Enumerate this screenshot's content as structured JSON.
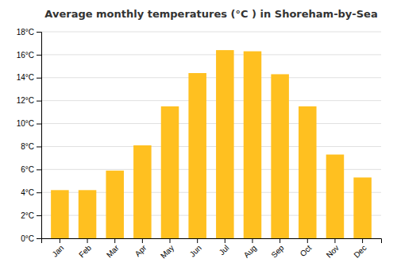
{
  "chart_data": {
    "type": "bar",
    "title": "Average monthly temperatures (°C ) in Shoreham-by-Sea",
    "categories": [
      "Jan",
      "Feb",
      "Mar",
      "Apr",
      "May",
      "Jun",
      "Jul",
      "Aug",
      "Sep",
      "Oct",
      "Nov",
      "Dec"
    ],
    "values": [
      4.2,
      4.2,
      5.9,
      8.1,
      11.5,
      14.4,
      16.4,
      16.3,
      14.3,
      11.5,
      7.3,
      5.3
    ],
    "color": "#FFC020",
    "ylim": [
      0,
      18
    ],
    "yticks": [
      {
        "value": 0,
        "label": "0°C"
      },
      {
        "value": 2,
        "label": "2°C"
      },
      {
        "value": 4,
        "label": "4°C"
      },
      {
        "value": 6,
        "label": "6°C"
      },
      {
        "value": 8,
        "label": "8°C"
      },
      {
        "value": 10,
        "label": "10°C"
      },
      {
        "value": 12,
        "label": "12°C"
      },
      {
        "value": 14,
        "label": "14°C"
      },
      {
        "value": 16,
        "label": "16°C"
      },
      {
        "value": 18,
        "label": "18°C"
      }
    ],
    "grid": true
  }
}
